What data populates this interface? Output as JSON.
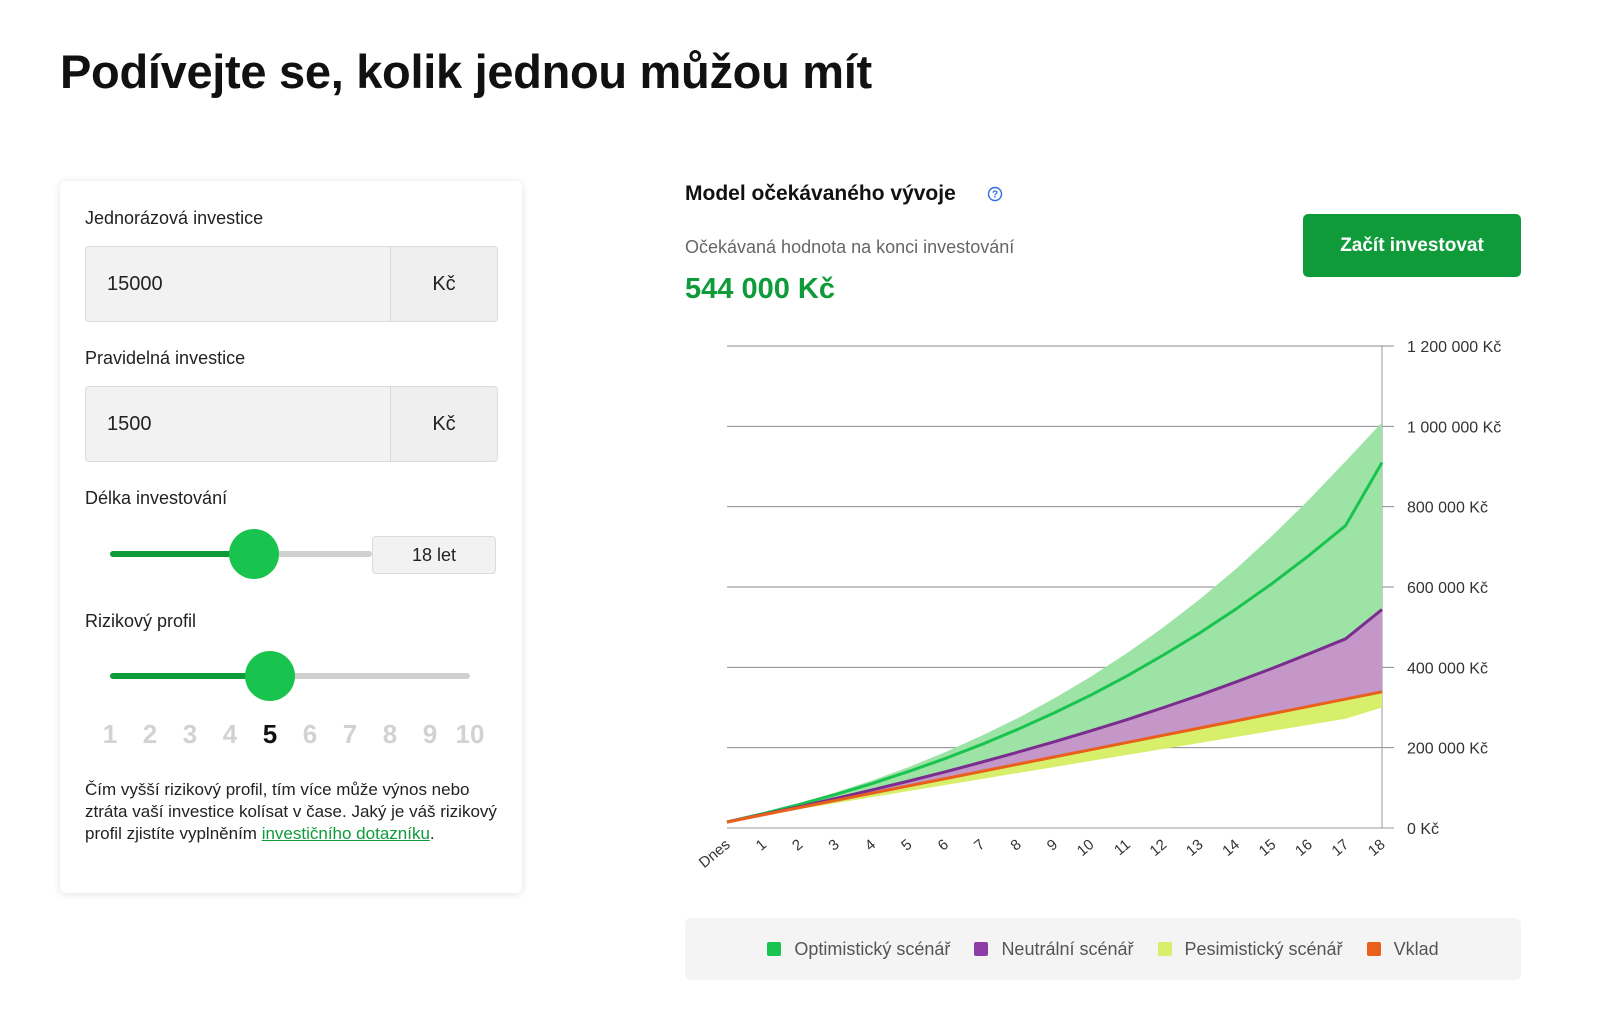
{
  "page": {
    "title": "Podívejte se, kolik jednou můžou mít"
  },
  "calculator": {
    "one_time": {
      "label": "Jednorázová investice",
      "value": "15000",
      "unit": "Kč"
    },
    "regular": {
      "label": "Pravidelná investice",
      "value": "1500",
      "unit": "Kč"
    },
    "duration": {
      "label": "Délka investování",
      "value": "18 let",
      "fraction": 0.55
    },
    "risk": {
      "label": "Rizikový profil",
      "scale": [
        "1",
        "2",
        "3",
        "4",
        "5",
        "6",
        "7",
        "8",
        "9",
        "10"
      ],
      "selected": 5,
      "fraction": 0.444,
      "note_text": "Čím vyšší rizikový profil, tím více může výnos nebo ztráta vaší investice kolísat v čase. Jaký je váš rizikový profil zjistíte vyplněním ",
      "note_link": "investičního dotazníku",
      "note_end": "."
    }
  },
  "model": {
    "title": "Model očekávaného vývoje",
    "info_icon": "question-circle-icon",
    "expected_label": "Očekávaná hodnota na konci investování",
    "expected_value": "544 000 Kč",
    "cta_label": "Začít investovat"
  },
  "colors": {
    "optimistic": "#19c44e",
    "optimistic_band": "#9de3a6",
    "neutral": "#7b2d8e",
    "neutral_band": "#c497c8",
    "pessimistic": "#d7ef6a",
    "deposit": "#e8601c",
    "accent": "#0f9b3a"
  },
  "chart_data": {
    "type": "area",
    "x": [
      "Dnes",
      "1",
      "2",
      "3",
      "4",
      "5",
      "6",
      "7",
      "8",
      "9",
      "10",
      "11",
      "12",
      "13",
      "14",
      "15",
      "16",
      "17",
      "18"
    ],
    "ylim": [
      0,
      1200000
    ],
    "yticks": [
      0,
      200000,
      400000,
      600000,
      800000,
      1000000,
      1200000
    ],
    "ytick_labels": [
      "0 Kč",
      "200 000 Kč",
      "400 000 Kč",
      "600 000 Kč",
      "800 000 Kč",
      "1 000 000 Kč",
      "1 200 000 Kč"
    ],
    "grid": true,
    "series": [
      {
        "name": "Optimistický scénář",
        "key": "optimistic_upper",
        "values": [
          15000,
          37000,
          62000,
          89000,
          119000,
          152000,
          189000,
          230000,
          274000,
          323000,
          377000,
          436000,
          500000,
          570000,
          646000,
          729000,
          818000,
          913000,
          1010000
        ]
      },
      {
        "key": "optimistic_mid",
        "values": [
          15000,
          36000,
          59000,
          84000,
          111000,
          141000,
          173000,
          208000,
          246000,
          287000,
          331000,
          379000,
          431000,
          486000,
          546000,
          610000,
          679000,
          753000,
          910000
        ]
      },
      {
        "name": "Neutrální scénář",
        "key": "neutral",
        "values": [
          15000,
          34000,
          53000,
          74000,
          95000,
          117000,
          140000,
          164000,
          189000,
          215000,
          242000,
          270000,
          300000,
          331000,
          364000,
          398000,
          434000,
          471000,
          544000
        ]
      },
      {
        "name": "Vklad",
        "key": "deposit",
        "values": [
          15000,
          33000,
          51000,
          69000,
          87000,
          105000,
          123000,
          141000,
          159000,
          177000,
          195000,
          213000,
          231000,
          249000,
          267000,
          285000,
          303000,
          321000,
          339000
        ]
      },
      {
        "name": "Pesimistický scénář",
        "key": "pessimistic_lower",
        "values": [
          15000,
          31000,
          47000,
          62000,
          77000,
          92000,
          107000,
          122000,
          137000,
          152000,
          167000,
          182000,
          197000,
          212000,
          227000,
          242000,
          257000,
          272000,
          300000
        ]
      }
    ]
  },
  "legend": [
    {
      "label": "Optimistický scénář",
      "color": "#19c44e"
    },
    {
      "label": "Neutrální scénář",
      "color": "#8e3ca8"
    },
    {
      "label": "Pesimistický scénář",
      "color": "#d7ef6a"
    },
    {
      "label": "Vklad",
      "color": "#e8601c"
    }
  ]
}
